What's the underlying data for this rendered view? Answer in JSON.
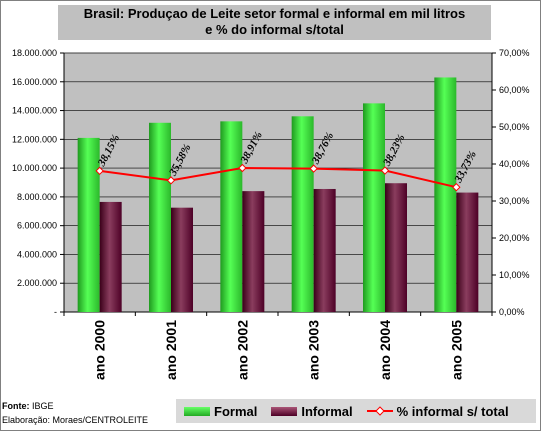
{
  "chart_data": {
    "type": "bar",
    "title_line1": "Brasil: Produçao de Leite setor formal e informal em mil litros",
    "title_line2": "e % do informal s/total",
    "categories": [
      "ano 2000",
      "ano 2001",
      "ano 2002",
      "ano 2003",
      "ano 2004",
      "ano 2005"
    ],
    "series": [
      {
        "name": "Formal",
        "type": "bar",
        "axis": "left",
        "color": "#33cc33",
        "values": [
          12100000,
          13150000,
          13250000,
          13600000,
          14500000,
          16300000
        ]
      },
      {
        "name": "Informal",
        "type": "bar",
        "axis": "left",
        "color": "#660033",
        "values": [
          7650000,
          7250000,
          8400000,
          8550000,
          8950000,
          8300000
        ]
      },
      {
        "name": "% informal s/ total",
        "type": "line",
        "axis": "right",
        "color": "#ff0000",
        "values": [
          38.15,
          35.58,
          38.91,
          38.76,
          38.23,
          33.73
        ],
        "labels": [
          "38,15%",
          "35,58%",
          "38,91%",
          "38,76%",
          "38,23%",
          "33,73%"
        ]
      }
    ],
    "ylim": [
      0,
      18000000
    ],
    "y_ticks": [
      "-",
      "2.000.000",
      "4.000.000",
      "6.000.000",
      "8.000.000",
      "10.000.000",
      "12.000.000",
      "14.000.000",
      "16.000.000",
      "18.000.000"
    ],
    "y2lim": [
      0,
      70
    ],
    "y2_ticks": [
      "0,00%",
      "10,00%",
      "20,00%",
      "30,00%",
      "40,00%",
      "50,00%",
      "60,00%",
      "70,00%"
    ],
    "grid": true,
    "legend_position": "bottom"
  },
  "source": {
    "label": "Fonte:",
    "value": "IBGE",
    "credit": "Elaboração: Moraes/CENTROLEITE"
  },
  "colors": {
    "plot_background": "#c0c0c0",
    "frame": "#808080",
    "legend_background": "#d9d9d9"
  }
}
